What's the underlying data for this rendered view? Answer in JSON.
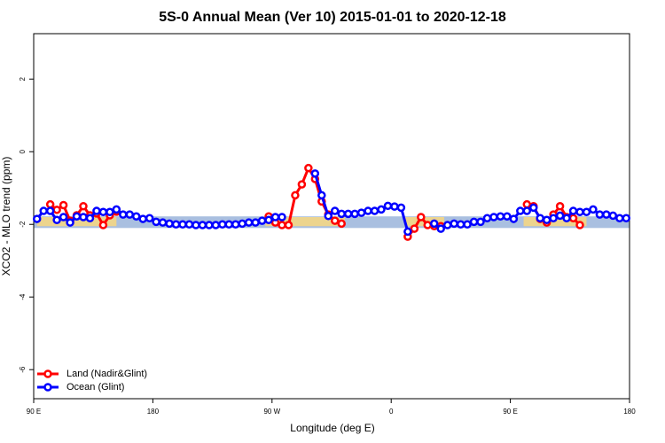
{
  "chart_data": {
    "type": "line",
    "title": "5S-0 Annual Mean (Ver 10)   2015-01-01 to 2020-12-18",
    "x_label": "Longitude (deg E)",
    "y_label": "XCO2 - MLO trend (ppm)",
    "xlim": [
      90,
      540
    ],
    "ylim": [
      -6.8,
      3.25
    ],
    "xticks": [
      {
        "value": 90,
        "label": "90 E"
      },
      180,
      {
        "value": 270,
        "label": "90 W"
      },
      {
        "value": 360,
        "label": "0"
      },
      {
        "value": 450,
        "label": "90 E"
      },
      {
        "value": 540,
        "label": "180"
      }
    ],
    "yticks": [
      2,
      0,
      -2,
      -4,
      -6
    ],
    "legend": "bottom-left",
    "ocean_band": {
      "lower": -2.1,
      "upper": -1.78,
      "color": "#a9bfe0"
    },
    "land_band": {
      "color": "#f8d77f",
      "lower": -2.05,
      "upper": -1.8,
      "segments": [
        [
          92.5,
          152.5
        ],
        [
          265,
          325
        ],
        [
          370,
          400
        ],
        [
          460,
          507.5
        ]
      ]
    },
    "x": [
      92.5,
      97.5,
      102.5,
      107.5,
      112.5,
      117.5,
      122.5,
      127.5,
      132.5,
      137.5,
      142.5,
      147.5,
      152.5,
      157.5,
      162.5,
      167.5,
      172.5,
      177.5,
      182.5,
      187.5,
      192.5,
      197.5,
      202.5,
      207.5,
      212.5,
      217.5,
      222.5,
      227.5,
      232.5,
      237.5,
      242.5,
      247.5,
      252.5,
      257.5,
      262.5,
      267.5,
      272.5,
      277.5,
      282.5,
      287.5,
      292.5,
      297.5,
      302.5,
      307.5,
      312.5,
      317.5,
      322.5,
      327.5,
      332.5,
      337.5,
      342.5,
      347.5,
      352.5,
      357.5,
      362.5,
      367.5,
      372.5,
      377.5,
      382.5,
      387.5,
      392.5,
      397.5,
      402.5,
      407.5,
      412.5,
      417.5,
      422.5,
      427.5,
      432.5,
      437.5,
      442.5,
      447.5,
      452.5,
      457.5,
      462.5,
      467.5,
      472.5,
      477.5,
      482.5,
      487.5,
      492.5,
      497.5,
      502.5,
      507.5,
      512.5,
      517.5,
      522.5,
      527.5,
      532.5,
      537.5
    ],
    "series": [
      {
        "name": "Land (Nadir&Glint)",
        "color": "#ff0000",
        "values": [
          null,
          null,
          -1.45,
          -1.6,
          -1.47,
          -1.9,
          -1.75,
          -1.5,
          -1.75,
          -1.7,
          -2.02,
          -1.75,
          -1.65,
          null,
          null,
          null,
          null,
          null,
          null,
          null,
          null,
          null,
          null,
          null,
          null,
          null,
          null,
          null,
          null,
          null,
          null,
          null,
          null,
          null,
          null,
          -1.78,
          -1.95,
          -2.02,
          -2.02,
          -1.2,
          -0.9,
          -0.45,
          -0.75,
          -1.37,
          -1.73,
          -1.9,
          -1.98,
          null,
          null,
          null,
          null,
          null,
          null,
          null,
          null,
          null,
          -2.34,
          -2.12,
          -1.8,
          -2.02,
          -2.05,
          -2.05,
          null,
          null,
          null,
          null,
          null,
          null,
          null,
          null,
          null,
          null,
          null,
          null,
          -1.45,
          -1.5,
          -1.85,
          -1.95,
          -1.73,
          -1.5,
          -1.8,
          -1.83,
          -2.02,
          null,
          null,
          null,
          null,
          null,
          null,
          null
        ]
      },
      {
        "name": "Ocean (Glint)",
        "color": "#0000ff",
        "values": [
          -1.85,
          -1.63,
          -1.63,
          -1.88,
          -1.8,
          -1.95,
          -1.78,
          -1.8,
          -1.83,
          -1.63,
          -1.66,
          -1.66,
          -1.59,
          -1.73,
          -1.73,
          -1.78,
          -1.85,
          -1.83,
          -1.93,
          -1.95,
          -1.98,
          -2.0,
          -2.0,
          -2.0,
          -2.02,
          -2.02,
          -2.02,
          -2.02,
          -2.0,
          -2.0,
          -2.0,
          -1.98,
          -1.95,
          -1.95,
          -1.9,
          -1.88,
          -1.8,
          -1.8,
          null,
          null,
          null,
          null,
          -0.6,
          -1.2,
          -1.77,
          -1.63,
          -1.71,
          -1.71,
          -1.71,
          -1.68,
          -1.63,
          -1.63,
          -1.59,
          -1.49,
          -1.51,
          -1.54,
          -2.2,
          null,
          null,
          null,
          -1.98,
          -2.12,
          -2.02,
          -1.98,
          -2.0,
          -2.0,
          -1.93,
          -1.93,
          -1.83,
          -1.8,
          -1.78,
          -1.78,
          -1.85,
          -1.63,
          -1.63,
          -1.54,
          -1.83,
          -1.88,
          -1.83,
          -1.76,
          -1.83,
          -1.63,
          -1.66,
          -1.66,
          -1.59,
          -1.73,
          -1.73,
          -1.76,
          -1.83,
          -1.83
        ]
      }
    ]
  }
}
